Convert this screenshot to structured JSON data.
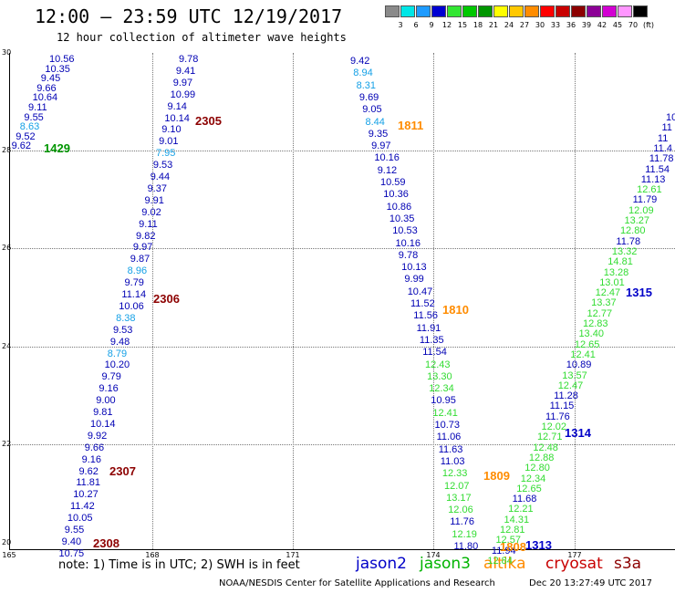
{
  "header": {
    "title": "12:00 – 23:59 UTC 12/19/2017",
    "subtitle": "12 hour collection of altimeter wave heights"
  },
  "legend": {
    "unit": "(ft)",
    "bins": [
      {
        "label": "3",
        "color": "#8a8a8a"
      },
      {
        "label": "6",
        "color": "#00e6e6"
      },
      {
        "label": "9",
        "color": "#1e9bff"
      },
      {
        "label": "12",
        "color": "#0000d2"
      },
      {
        "label": "15",
        "color": "#33e633"
      },
      {
        "label": "18",
        "color": "#00c800"
      },
      {
        "label": "21",
        "color": "#009600"
      },
      {
        "label": "24",
        "color": "#ffff00"
      },
      {
        "label": "27",
        "color": "#ffc800"
      },
      {
        "label": "30",
        "color": "#ff8c00"
      },
      {
        "label": "33",
        "color": "#ff0000"
      },
      {
        "label": "36",
        "color": "#c80000"
      },
      {
        "label": "39",
        "color": "#8c0000"
      },
      {
        "label": "42",
        "color": "#8c0096"
      },
      {
        "label": "45",
        "color": "#d200d2"
      },
      {
        "label": "70",
        "color": "#ff96ff"
      },
      {
        "label": "",
        "color": "#000000"
      }
    ]
  },
  "axes": {
    "lat_labels": [
      "30",
      "28",
      "26",
      "24",
      "22",
      "20"
    ],
    "lon_labels": [
      "165",
      "168",
      "171",
      "174",
      "177"
    ]
  },
  "colors": {
    "blue": "#0000b4",
    "cyan": "#14a0e6",
    "green": "#32dc32",
    "green2": "#009600",
    "orange": "#ff8c00",
    "maroon": "#8c0000",
    "jason2": "#0000c8",
    "cryosat": "#c80000"
  },
  "passes": [
    {
      "id": "1429",
      "color": "green2"
    },
    {
      "id": "2305",
      "color": "maroon"
    },
    {
      "id": "2306",
      "color": "maroon"
    },
    {
      "id": "2307",
      "color": "maroon"
    },
    {
      "id": "2308",
      "color": "maroon"
    },
    {
      "id": "1811",
      "color": "orange"
    },
    {
      "id": "1810",
      "color": "orange"
    },
    {
      "id": "1809",
      "color": "orange"
    },
    {
      "id": "1808",
      "color": "orange"
    },
    {
      "id": "1315",
      "color": "jason2"
    },
    {
      "id": "1314",
      "color": "jason2"
    },
    {
      "id": "1313",
      "color": "jason2"
    }
  ],
  "tracks": {
    "t1429": [
      "10.56",
      "10.35",
      "9.45",
      "9.66",
      "10.64",
      "9.11",
      "9.55",
      "8.63",
      "9.52",
      "9.62"
    ],
    "t2305": [
      "9.78",
      "9.41",
      "9.97",
      "10.99",
      "9.14",
      "10.14",
      "9.10",
      "9.01",
      "7.95",
      "9.53",
      "9.44",
      "9.37",
      "9.91",
      "9.02",
      "9.11",
      "9.82",
      "9.97",
      "9.87",
      "8.96",
      "9.79",
      "11.14",
      "10.06",
      "8.38",
      "9.53",
      "9.48",
      "8.79",
      "10.20",
      "9.79",
      "9.16",
      "9.00",
      "9.81",
      "10.14",
      "9.92",
      "9.66",
      "9.16",
      "9.62",
      "11.81",
      "10.27",
      "11.42",
      "10.05",
      "9.55",
      "9.40",
      "10.75"
    ],
    "t1811": [
      "9.42",
      "8.94",
      "8.31",
      "9.69",
      "9.05",
      "8.44",
      "9.35",
      "9.97",
      "10.16",
      "9.12",
      "10.59",
      "10.36",
      "10.86",
      "10.35",
      "10.53",
      "10.16",
      "9.78",
      "10.13",
      "9.99",
      "10.47",
      "11.52",
      "11.56",
      "11.91",
      "11.35",
      "11.54",
      "12.43",
      "13.30",
      "12.34",
      "10.95",
      "12.41",
      "10.73",
      "11.06",
      "11.63",
      "11.03",
      "12.33",
      "12.07",
      "13.17",
      "12.06",
      "11.76",
      "12.19",
      "11.80"
    ],
    "t1315": [
      "10",
      "11",
      "11",
      "11.4",
      "11.78",
      "11.54",
      "11.13",
      "12.61",
      "11.79",
      "12.09",
      "13.27",
      "12.80",
      "11.78",
      "13.32",
      "14.81",
      "13.28",
      "13.01",
      "12.47",
      "13.37",
      "12.77",
      "12.83",
      "13.40",
      "12.65",
      "12.41",
      "10.89",
      "13.57",
      "12.47",
      "11.28",
      "11.15",
      "11.76",
      "12.02",
      "12.71",
      "12.48",
      "12.88",
      "12.80",
      "12.34",
      "12.65",
      "11.68",
      "12.21",
      "14.31",
      "12.81",
      "12.57",
      "11.94",
      "12.84"
    ]
  },
  "footer": {
    "note": "note:  1) Time is in UTC;  2) SWH is in feet",
    "jason2": "jason2",
    "jason3": "jason3",
    "altika": "altika",
    "cryosat": "cryosat",
    "s3a": "s3a",
    "credit": "NOAA/NESDIS Center for Satellite Applications and Research",
    "timestamp": "Dec 20 13:27:49 UTC 2017"
  }
}
